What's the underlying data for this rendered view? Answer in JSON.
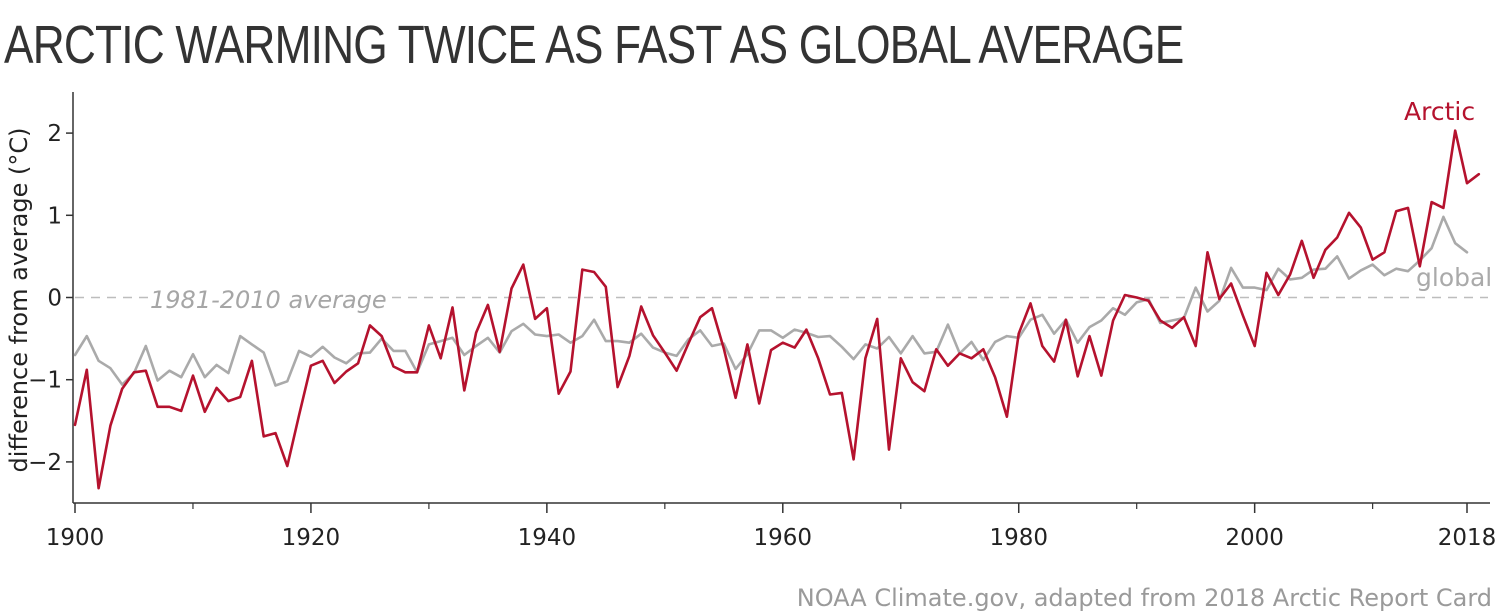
{
  "page": {
    "title": "ARCTIC WARMING TWICE AS FAST AS GLOBAL AVERAGE",
    "credit": "NOAA Climate.gov, adapted from 2018 Arctic Report Card"
  },
  "colors": {
    "arctic": "#b5122e",
    "global": "#aaaaaa",
    "baseline": "#bdbdbd",
    "axis": "#333333"
  },
  "chart_data": {
    "type": "line",
    "title": "ARCTIC WARMING TWICE AS FAST AS GLOBAL AVERAGE",
    "xlabel": "",
    "ylabel": "difference from average (°C)",
    "xlim": [
      1900,
      2018
    ],
    "ylim": [
      -2.5,
      2.5
    ],
    "x_ticks": [
      1900,
      1920,
      1940,
      1960,
      1980,
      2000,
      2018
    ],
    "x_tick_labels": [
      "1900",
      "1920",
      "1940",
      "1960",
      "1980",
      "2000",
      "2018"
    ],
    "y_ticks": [
      2,
      1,
      0,
      -1,
      -2
    ],
    "y_tick_labels": [
      "2",
      "1",
      "0",
      "−1",
      "−2"
    ],
    "grid": false,
    "baseline": {
      "y": 0,
      "label": "1981-2010 average"
    },
    "x_start": 1900,
    "series": [
      {
        "name": "Arctic",
        "values": [
          -1.55,
          -0.88,
          -2.32,
          -1.56,
          -1.11,
          -0.91,
          -0.89,
          -1.33,
          -1.33,
          -1.38,
          -0.95,
          -1.39,
          -1.1,
          -1.26,
          -1.21,
          -0.77,
          -1.69,
          -1.65,
          -2.05,
          -1.43,
          -0.83,
          -0.77,
          -1.04,
          -0.9,
          -0.8,
          -0.34,
          -0.47,
          -0.84,
          -0.91,
          -0.91,
          -0.34,
          -0.74,
          -0.12,
          -1.13,
          -0.43,
          -0.09,
          -0.66,
          0.11,
          0.4,
          -0.26,
          -0.13,
          -1.17,
          -0.9,
          0.34,
          0.31,
          0.13,
          -1.09,
          -0.71,
          -0.11,
          -0.46,
          -0.67,
          -0.89,
          -0.56,
          -0.24,
          -0.13,
          -0.62,
          -1.22,
          -0.57,
          -1.29,
          -0.64,
          -0.55,
          -0.61,
          -0.39,
          -0.74,
          -1.18,
          -1.16,
          -1.97,
          -0.74,
          -0.26,
          -1.85,
          -0.74,
          -1.03,
          -1.14,
          -0.63,
          -0.83,
          -0.68,
          -0.74,
          -0.63,
          -0.97,
          -1.45,
          -0.44,
          -0.07,
          -0.59,
          -0.78,
          -0.27,
          -0.96,
          -0.47,
          -0.95,
          -0.28,
          0.03,
          0.0,
          -0.04,
          -0.28,
          -0.37,
          -0.24,
          -0.59,
          0.55,
          -0.02,
          0.17,
          -0.22,
          -0.59,
          0.3,
          0.03,
          0.28,
          0.69,
          0.24,
          0.58,
          0.73,
          1.03,
          0.85,
          0.46,
          0.55,
          1.05,
          1.09,
          0.38,
          1.16,
          1.09,
          2.03,
          1.39,
          1.5
        ]
      },
      {
        "name": "global",
        "values": [
          -0.7,
          -0.47,
          -0.77,
          -0.86,
          -1.06,
          -0.92,
          -0.59,
          -1.01,
          -0.89,
          -0.97,
          -0.69,
          -0.97,
          -0.82,
          -0.92,
          -0.47,
          -0.57,
          -0.67,
          -1.07,
          -1.02,
          -0.65,
          -0.72,
          -0.6,
          -0.73,
          -0.8,
          -0.68,
          -0.67,
          -0.5,
          -0.65,
          -0.65,
          -0.91,
          -0.57,
          -0.53,
          -0.49,
          -0.7,
          -0.59,
          -0.49,
          -0.67,
          -0.41,
          -0.32,
          -0.45,
          -0.47,
          -0.45,
          -0.55,
          -0.47,
          -0.27,
          -0.53,
          -0.53,
          -0.55,
          -0.44,
          -0.61,
          -0.67,
          -0.71,
          -0.51,
          -0.4,
          -0.59,
          -0.56,
          -0.87,
          -0.69,
          -0.4,
          -0.4,
          -0.49,
          -0.39,
          -0.43,
          -0.48,
          -0.47,
          -0.6,
          -0.75,
          -0.57,
          -0.62,
          -0.48,
          -0.68,
          -0.47,
          -0.68,
          -0.66,
          -0.33,
          -0.68,
          -0.54,
          -0.76,
          -0.54,
          -0.47,
          -0.49,
          -0.27,
          -0.21,
          -0.44,
          -0.27,
          -0.55,
          -0.36,
          -0.28,
          -0.13,
          -0.21,
          -0.06,
          -0.02,
          -0.31,
          -0.28,
          -0.25,
          0.12,
          -0.17,
          -0.04,
          0.36,
          0.12,
          0.12,
          0.09,
          0.35,
          0.22,
          0.24,
          0.34,
          0.35,
          0.5,
          0.23,
          0.33,
          0.4,
          0.27,
          0.35,
          0.32,
          0.45,
          0.6,
          0.98,
          0.66,
          0.55
        ]
      }
    ],
    "annotations": [
      {
        "text": "Arctic",
        "series": "Arctic"
      },
      {
        "text": "global",
        "series": "global"
      },
      {
        "text": "1981-2010 average",
        "series": "baseline"
      }
    ]
  }
}
